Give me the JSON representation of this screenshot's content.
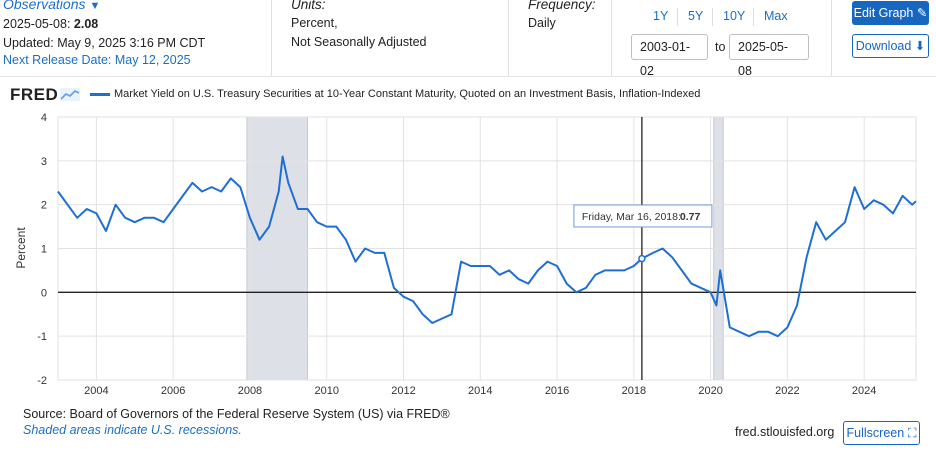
{
  "header": {
    "observations_title": "Observations",
    "obs_date_label": "2025-05-08:",
    "obs_value": "2.08",
    "updated": "Updated: May 9, 2025 3:16 PM CDT",
    "next_release": "Next Release Date: May 12, 2025",
    "units_label": "Units:",
    "units_line1": "Percent,",
    "units_line2": "Not Seasonally Adjusted",
    "frequency_label": "Frequency:",
    "frequency_value": "Daily",
    "range_buttons": [
      "1Y",
      "5Y",
      "10Y",
      "Max"
    ],
    "start_date": "2003-01-02",
    "to_label": "to",
    "end_date": "2025-05-08",
    "edit_graph": "Edit Graph",
    "download": "Download"
  },
  "logo_text": "FRED",
  "footer": {
    "source": "Source: Board of Governors of the Federal Reserve System (US) via FRED®",
    "shaded_note": "Shaded areas indicate U.S. recessions.",
    "site": "fred.stlouisfed.org",
    "fullscreen": "Fullscreen"
  },
  "colors": {
    "series": "#1f6fd1",
    "accent": "#1766c0",
    "recession": "#dde1e7"
  },
  "tooltip": {
    "date": "Friday, Mar 16, 2018:",
    "value": "0.77",
    "x": 2018.21,
    "y": 0.77
  },
  "chart_data": {
    "type": "line",
    "title": "",
    "xlabel": "",
    "ylabel": "Percent",
    "xlim": [
      2003.0,
      2025.35
    ],
    "ylim": [
      -2,
      4
    ],
    "yticks": [
      4,
      3,
      2,
      1,
      0,
      -1,
      -2
    ],
    "xticks": [
      2004,
      2006,
      2008,
      2010,
      2012,
      2014,
      2016,
      2018,
      2020,
      2022,
      2024
    ],
    "grid": true,
    "legend": "top-left",
    "recessions": [
      [
        2007.92,
        2009.5
      ],
      [
        2020.08,
        2020.33
      ]
    ],
    "series": [
      {
        "name": "Market Yield on U.S. Treasury Securities at 10-Year Constant Maturity, Quoted on an Investment Basis, Inflation-Indexed",
        "x": [
          2003.0,
          2003.25,
          2003.5,
          2003.75,
          2004.0,
          2004.25,
          2004.5,
          2004.75,
          2005.0,
          2005.25,
          2005.5,
          2005.75,
          2006.0,
          2006.25,
          2006.5,
          2006.75,
          2007.0,
          2007.25,
          2007.5,
          2007.75,
          2008.0,
          2008.25,
          2008.5,
          2008.75,
          2008.85,
          2009.0,
          2009.25,
          2009.5,
          2009.75,
          2010.0,
          2010.25,
          2010.5,
          2010.75,
          2011.0,
          2011.25,
          2011.5,
          2011.75,
          2012.0,
          2012.25,
          2012.5,
          2012.75,
          2013.0,
          2013.25,
          2013.5,
          2013.75,
          2014.0,
          2014.25,
          2014.5,
          2014.75,
          2015.0,
          2015.25,
          2015.5,
          2015.75,
          2016.0,
          2016.25,
          2016.5,
          2016.75,
          2017.0,
          2017.25,
          2017.5,
          2017.75,
          2018.0,
          2018.21,
          2018.5,
          2018.75,
          2019.0,
          2019.25,
          2019.5,
          2019.75,
          2020.0,
          2020.15,
          2020.25,
          2020.5,
          2020.75,
          2021.0,
          2021.25,
          2021.5,
          2021.75,
          2022.0,
          2022.25,
          2022.5,
          2022.75,
          2023.0,
          2023.25,
          2023.5,
          2023.75,
          2024.0,
          2024.25,
          2024.5,
          2024.75,
          2025.0,
          2025.25,
          2025.35
        ],
        "values": [
          2.3,
          2.0,
          1.7,
          1.9,
          1.8,
          1.4,
          2.0,
          1.7,
          1.6,
          1.7,
          1.7,
          1.6,
          1.9,
          2.2,
          2.5,
          2.3,
          2.4,
          2.3,
          2.6,
          2.4,
          1.7,
          1.2,
          1.5,
          2.3,
          3.1,
          2.5,
          1.9,
          1.9,
          1.6,
          1.5,
          1.5,
          1.2,
          0.7,
          1.0,
          0.9,
          0.9,
          0.1,
          -0.1,
          -0.2,
          -0.5,
          -0.7,
          -0.6,
          -0.5,
          0.7,
          0.6,
          0.6,
          0.6,
          0.4,
          0.5,
          0.3,
          0.2,
          0.5,
          0.7,
          0.6,
          0.2,
          0.0,
          0.1,
          0.4,
          0.5,
          0.5,
          0.5,
          0.6,
          0.77,
          0.9,
          1.0,
          0.8,
          0.5,
          0.2,
          0.1,
          0.0,
          -0.3,
          0.5,
          -0.8,
          -0.9,
          -1.0,
          -0.9,
          -0.9,
          -1.0,
          -0.8,
          -0.3,
          0.8,
          1.6,
          1.2,
          1.4,
          1.6,
          2.4,
          1.9,
          2.1,
          2.0,
          1.8,
          2.2,
          2.0,
          2.08
        ]
      }
    ]
  }
}
